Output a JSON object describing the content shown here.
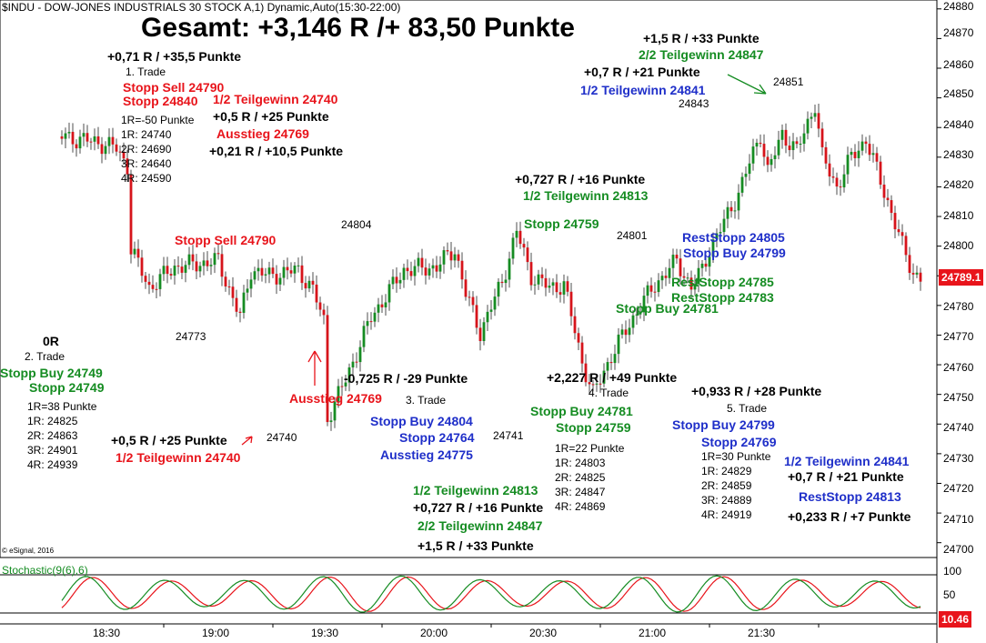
{
  "header": {
    "symbol_line": "$INDU - DOW-JONES INDUSTRIALS 30 STOCK A,1) Dynamic,Auto(15:30-22:00)"
  },
  "title": "Gesamt: +3,146 R /+ 83,50 Punkte",
  "copyright": "© eSignal, 2016",
  "oscillator": {
    "title": "Stochastic(9(6),6)",
    "last_value": "10.46",
    "levels": [
      "100",
      "50",
      "0"
    ]
  },
  "price": {
    "last_label": "24789.1",
    "last_value": 24789.1
  },
  "colors": {
    "up_candle": "#168c23",
    "down_candle": "#d6141b",
    "stoch_k": "#158c22",
    "stoch_d": "#e8141b",
    "red": "#e8141b",
    "green": "#158c22",
    "blue": "#1f2fc9"
  },
  "chart_data": {
    "type": "candlestick",
    "interval": "1 minute",
    "y_axis_ticks": [
      24880,
      24870,
      24860,
      24850,
      24840,
      24830,
      24820,
      24810,
      24800,
      24790,
      24780,
      24770,
      24760,
      24750,
      24740,
      24730,
      24720,
      24710,
      24700
    ],
    "y_axis_labels": [
      "24880",
      "24870",
      "24860",
      "24850",
      "24840",
      "24830",
      "24820",
      "24810",
      "24800",
      "24790",
      "24780",
      "24770",
      "24760",
      "24750",
      "24740",
      "24730",
      "24720",
      "24710",
      "24700"
    ],
    "ylim": [
      24695,
      24883
    ],
    "x_axis_labels": [
      "18:30",
      "19:00",
      "19:30",
      "20:00",
      "20:30",
      "21:00",
      "21:30"
    ],
    "price_path": [
      [
        "18:02",
        24837
      ],
      [
        "18:12",
        24835
      ],
      [
        "18:17",
        24833
      ],
      [
        "18:20",
        24827
      ],
      [
        "18:21",
        24799
      ],
      [
        "18:26",
        24786
      ],
      [
        "18:33",
        24793
      ],
      [
        "18:45",
        24795
      ],
      [
        "18:51",
        24776
      ],
      [
        "18:54",
        24792
      ],
      [
        "18:59",
        24790
      ],
      [
        "19:07",
        24792
      ],
      [
        "19:11",
        24785
      ],
      [
        "19:14",
        24775
      ],
      [
        "19:15",
        24742
      ],
      [
        "19:20",
        24755
      ],
      [
        "19:27",
        24776
      ],
      [
        "19:36",
        24792
      ],
      [
        "19:45",
        24793
      ],
      [
        "19:50",
        24799
      ],
      [
        "19:53",
        24784
      ],
      [
        "19:57",
        24771
      ],
      [
        "20:03",
        24788
      ],
      [
        "20:07",
        24805
      ],
      [
        "20:11",
        24790
      ],
      [
        "20:16",
        24786
      ],
      [
        "20:20",
        24787
      ],
      [
        "20:25",
        24761
      ],
      [
        "20:28",
        24750
      ],
      [
        "20:33",
        24763
      ],
      [
        "20:40",
        24778
      ],
      [
        "20:45",
        24787
      ],
      [
        "20:51",
        24795
      ],
      [
        "20:55",
        24786
      ],
      [
        "20:58",
        24792
      ],
      [
        "21:00",
        24799
      ],
      [
        "21:04",
        24808
      ],
      [
        "21:08",
        24818
      ],
      [
        "21:14",
        24838
      ],
      [
        "21:16",
        24825
      ],
      [
        "21:20",
        24838
      ],
      [
        "21:24",
        24832
      ],
      [
        "21:29",
        24848
      ],
      [
        "21:31",
        24830
      ],
      [
        "21:35",
        24820
      ],
      [
        "21:39",
        24830
      ],
      [
        "21:43",
        24836
      ],
      [
        "21:49",
        24815
      ],
      [
        "21:53",
        24800
      ],
      [
        "21:56",
        24791
      ],
      [
        "21:58",
        24789
      ]
    ]
  },
  "annotations": [
    {
      "text": "+0,71 R / +35,5 Punkte",
      "color": "black",
      "bold": true
    },
    {
      "text": "1. Trade",
      "color": "black",
      "bold": false
    },
    {
      "text": "Stopp Sell 24790",
      "color": "red",
      "bold": true
    },
    {
      "text": "Stopp 24840",
      "color": "red",
      "bold": true
    },
    {
      "text": "1/2 Teilgewinn 24740",
      "color": "red",
      "bold": true
    },
    {
      "text": "1R=-50 Punkte",
      "color": "black",
      "bold": false
    },
    {
      "text": "+0,5 R / +25 Punkte",
      "color": "black",
      "bold": true
    },
    {
      "text": "1R: 24740",
      "color": "black",
      "bold": false
    },
    {
      "text": "Ausstieg 24769",
      "color": "red",
      "bold": true
    },
    {
      "text": "2R: 24690",
      "color": "black",
      "bold": false
    },
    {
      "text": "+0,21 R / +10,5 Punkte",
      "color": "black",
      "bold": true
    },
    {
      "text": "3R: 24640",
      "color": "black",
      "bold": false
    },
    {
      "text": "4R: 24590",
      "color": "black",
      "bold": false
    },
    {
      "text": "Stopp Sell 24790",
      "color": "red",
      "bold": true
    },
    {
      "text": "24804",
      "color": "black",
      "bold": false
    },
    {
      "text": "24773",
      "color": "black",
      "bold": false
    },
    {
      "text": "0R",
      "color": "black",
      "bold": true
    },
    {
      "text": "2. Trade",
      "color": "black",
      "bold": false
    },
    {
      "text": "Stopp Buy 24749",
      "color": "green",
      "bold": true
    },
    {
      "text": "Stopp 24749",
      "color": "green",
      "bold": true
    },
    {
      "text": "1R=38 Punkte",
      "color": "black",
      "bold": false
    },
    {
      "text": "1R: 24825",
      "color": "black",
      "bold": false
    },
    {
      "text": "2R: 24863",
      "color": "black",
      "bold": false
    },
    {
      "text": "3R: 24901",
      "color": "black",
      "bold": false
    },
    {
      "text": "4R: 24939",
      "color": "black",
      "bold": false
    },
    {
      "text": "+0,5 R / +25 Punkte",
      "color": "black",
      "bold": true
    },
    {
      "text": "1/2 Teilgewinn 24740",
      "color": "red",
      "bold": true
    },
    {
      "text": "24740",
      "color": "black",
      "bold": false
    },
    {
      "text": "Ausstieg 24769",
      "color": "red",
      "bold": true
    },
    {
      "text": "-0,725 R / -29 Punkte",
      "color": "black",
      "bold": true
    },
    {
      "text": "3. Trade",
      "color": "black",
      "bold": false
    },
    {
      "text": "Stopp Buy 24804",
      "color": "blue",
      "bold": true
    },
    {
      "text": "Stopp 24764",
      "color": "blue",
      "bold": true
    },
    {
      "text": "Ausstieg 24775",
      "color": "blue",
      "bold": true
    },
    {
      "text": "24741",
      "color": "black",
      "bold": false
    },
    {
      "text": "1/2 Teilgewinn 24813",
      "color": "green",
      "bold": true
    },
    {
      "text": "+0,727 R / +16 Punkte",
      "color": "black",
      "bold": true
    },
    {
      "text": "2/2 Teilgewinn 24847",
      "color": "green",
      "bold": true
    },
    {
      "text": "+1,5 R / +33 Punkte",
      "color": "black",
      "bold": true
    },
    {
      "text": "+0,727 R / +16 Punkte",
      "color": "black",
      "bold": true
    },
    {
      "text": "1/2 Teilgewinn 24813",
      "color": "green",
      "bold": true
    },
    {
      "text": "Stopp 24759",
      "color": "green",
      "bold": true
    },
    {
      "text": "24801",
      "color": "black",
      "bold": false
    },
    {
      "text": "+2,227 R / +49 Punkte",
      "color": "black",
      "bold": true
    },
    {
      "text": "4. Trade",
      "color": "black",
      "bold": false
    },
    {
      "text": "Stopp Buy 24781",
      "color": "green",
      "bold": true
    },
    {
      "text": "Stopp 24759",
      "color": "green",
      "bold": true
    },
    {
      "text": "1R=22 Punkte",
      "color": "black",
      "bold": false
    },
    {
      "text": "1R: 24803",
      "color": "black",
      "bold": false
    },
    {
      "text": "2R: 24825",
      "color": "black",
      "bold": false
    },
    {
      "text": "3R: 24847",
      "color": "black",
      "bold": false
    },
    {
      "text": "4R: 24869",
      "color": "black",
      "bold": false
    },
    {
      "text": "Stopp Buy 24781",
      "color": "green",
      "bold": true
    },
    {
      "text": "RestStopp 24785",
      "color": "green",
      "bold": true
    },
    {
      "text": "RestStopp 24783",
      "color": "green",
      "bold": true
    },
    {
      "text": "RestStopp 24805",
      "color": "blue",
      "bold": true
    },
    {
      "text": "Stopp Buy 24799",
      "color": "blue",
      "bold": true
    },
    {
      "text": "+1,5 R / +33 Punkte",
      "color": "black",
      "bold": true
    },
    {
      "text": "2/2 Teilgewinn 24847",
      "color": "green",
      "bold": true
    },
    {
      "text": "+0,7 R / +21 Punkte",
      "color": "black",
      "bold": true
    },
    {
      "text": "1/2 Teilgewinn 24841",
      "color": "blue",
      "bold": true
    },
    {
      "text": "24851",
      "color": "black",
      "bold": false
    },
    {
      "text": "24843",
      "color": "black",
      "bold": false
    },
    {
      "text": "+0,933 R / +28 Punkte",
      "color": "black",
      "bold": true
    },
    {
      "text": "5. Trade",
      "color": "black",
      "bold": false
    },
    {
      "text": "Stopp Buy 24799",
      "color": "blue",
      "bold": true
    },
    {
      "text": "Stopp 24769",
      "color": "blue",
      "bold": true
    },
    {
      "text": "1R=30 Punkte",
      "color": "black",
      "bold": false
    },
    {
      "text": "1R: 24829",
      "color": "black",
      "bold": false
    },
    {
      "text": "2R: 24859",
      "color": "black",
      "bold": false
    },
    {
      "text": "3R: 24889",
      "color": "black",
      "bold": false
    },
    {
      "text": "4R: 24919",
      "color": "black",
      "bold": false
    },
    {
      "text": "1/2 Teilgewinn 24841",
      "color": "blue",
      "bold": true
    },
    {
      "text": "+0,7 R / +21 Punkte",
      "color": "black",
      "bold": true
    },
    {
      "text": "RestStopp 24813",
      "color": "blue",
      "bold": true
    },
    {
      "text": "+0,233 R / +7 Punkte",
      "color": "black",
      "bold": true
    }
  ]
}
